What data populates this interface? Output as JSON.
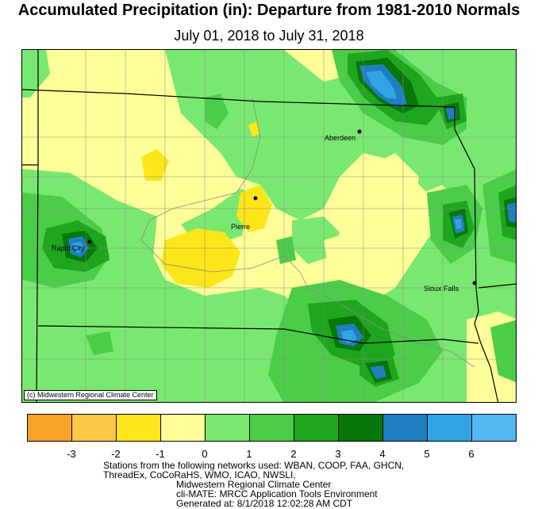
{
  "title": "Accumulated Precipitation (in): Departure from 1981-2010 Normals",
  "subtitle": "July 01, 2018 to July 31, 2018",
  "map": {
    "credit": "(c) Midwestern Regional Climate Center",
    "cities": [
      {
        "name": "Aberdeen"
      },
      {
        "name": "Pierre"
      },
      {
        "name": "Rapid City"
      },
      {
        "name": "Sioux Falls"
      }
    ]
  },
  "legend": {
    "colors": [
      "#f7a325",
      "#fdc844",
      "#fde61a",
      "#ffff99",
      "#79e870",
      "#4ccd4a",
      "#1ea61e",
      "#07770a",
      "#1f7fc0",
      "#31a4e5",
      "#52b8f2"
    ],
    "ticks": [
      "-3",
      "-2",
      "-1",
      "0",
      "1",
      "2",
      "3",
      "4",
      "5",
      "6"
    ]
  },
  "footer": {
    "lines": [
      "Stations from the following networks used: WBAN, COOP, FAA, GHCN,",
      "ThreadEx, CoCoRaHS, WMO, ICAO, NWSLI,",
      "Midwestern Regional Climate Center",
      "cli-MATE: MRCC Application Tools Environment",
      "Generated at: 8/1/2018 12:02:28 AM CDT"
    ]
  }
}
